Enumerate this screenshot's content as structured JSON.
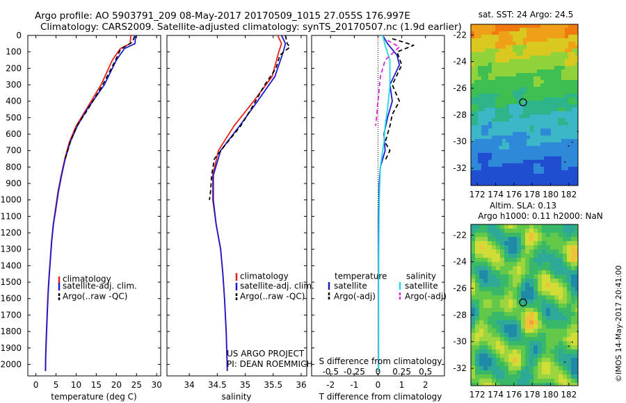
{
  "header": {
    "line1": "Argo profile: AO 5903791_209 08-May-2017 20170509_1015 27.055S 176.997E",
    "line2": "Climatology: CARS2009. Satellite-adjusted climatology: synTS_20170507.nc (1.9d earlier)"
  },
  "footer": {
    "project": "US ARGO PROJECT",
    "pi": "PI: DEAN ROEMMICH",
    "imos": "©IMOS 14-May-2017 20:41:00"
  },
  "colors": {
    "climatology": "#e8201c",
    "satellite": "#1a1acd",
    "argo": "#000000",
    "satellite_salinity": "#22d8e8",
    "argo_salinity": "#e020e0"
  },
  "legend_labels": {
    "climatology": "climatology",
    "satellite": "satellite-adj. clim.",
    "argo": "Argo(..raw -QC)",
    "temperature_head": "temperature",
    "salinity_head": "salinity",
    "diff_satellite": "satellite",
    "diff_argo": "Argo(-adj)"
  },
  "chart_data": [
    {
      "type": "line",
      "name": "temperature-profile",
      "xlabel": "temperature (deg C)",
      "ylabel": "",
      "xlim": [
        -2,
        31
      ],
      "ylim": [
        2070,
        0
      ],
      "xticks": [
        0,
        5,
        10,
        15,
        20,
        25,
        30
      ],
      "yticks": [
        0,
        100,
        200,
        300,
        400,
        500,
        600,
        700,
        800,
        900,
        1000,
        1100,
        1200,
        1300,
        1400,
        1500,
        1600,
        1700,
        1800,
        1900,
        2000
      ],
      "series": [
        {
          "name": "climatology",
          "key": "climatology",
          "style": "solid",
          "points": [
            [
              23.6,
              0
            ],
            [
              23.4,
              50
            ],
            [
              21,
              80
            ],
            [
              19,
              150
            ],
            [
              16.2,
              300
            ],
            [
              12.5,
              450
            ],
            [
              10,
              550
            ],
            [
              8.3,
              650
            ],
            [
              7.2,
              750
            ],
            [
              6.3,
              850
            ],
            [
              5.5,
              950
            ],
            [
              4.9,
              1050
            ],
            [
              4.3,
              1150
            ],
            [
              3.9,
              1250
            ],
            [
              3.6,
              1350
            ],
            [
              3.3,
              1450
            ],
            [
              3.05,
              1550
            ],
            [
              2.85,
              1650
            ],
            [
              2.7,
              1750
            ],
            [
              2.55,
              1850
            ],
            [
              2.4,
              1950
            ],
            [
              2.35,
              2040
            ]
          ]
        },
        {
          "name": "satellite-adj. clim.",
          "key": "satellite",
          "style": "solid",
          "points": [
            [
              24.8,
              0
            ],
            [
              24.6,
              50
            ],
            [
              22,
              80
            ],
            [
              20,
              150
            ],
            [
              17,
              300
            ],
            [
              12.7,
              450
            ],
            [
              10.3,
              550
            ],
            [
              8.5,
              650
            ],
            [
              7.3,
              750
            ],
            [
              6.4,
              850
            ],
            [
              5.6,
              950
            ],
            [
              5,
              1050
            ],
            [
              4.35,
              1150
            ],
            [
              3.95,
              1250
            ],
            [
              3.65,
              1350
            ],
            [
              3.35,
              1450
            ],
            [
              3.1,
              1550
            ],
            [
              2.9,
              1650
            ],
            [
              2.75,
              1750
            ],
            [
              2.6,
              1850
            ],
            [
              2.45,
              1950
            ],
            [
              2.4,
              2040
            ]
          ]
        },
        {
          "name": "Argo(..raw -QC)",
          "key": "argo",
          "style": "dashed",
          "points": [
            [
              24.5,
              5
            ],
            [
              24,
              40
            ],
            [
              21,
              85
            ],
            [
              19.8,
              150
            ],
            [
              16.6,
              300
            ],
            [
              12.9,
              450
            ],
            [
              10.2,
              550
            ],
            [
              8.5,
              650
            ],
            [
              7.3,
              750
            ]
          ]
        }
      ]
    },
    {
      "type": "line",
      "name": "salinity-profile",
      "xlabel": "salinity",
      "ylabel": "",
      "xlim": [
        33.6,
        36.1
      ],
      "ylim": [
        2070,
        0
      ],
      "xticks": [
        34,
        34.5,
        35,
        35.5,
        36
      ],
      "series": [
        {
          "name": "climatology",
          "key": "climatology",
          "style": "solid",
          "points": [
            [
              35.58,
              0
            ],
            [
              35.65,
              50
            ],
            [
              35.6,
              100
            ],
            [
              35.48,
              250
            ],
            [
              35.15,
              400
            ],
            [
              34.8,
              550
            ],
            [
              34.52,
              700
            ],
            [
              34.42,
              850
            ],
            [
              34.42,
              1000
            ],
            [
              34.48,
              1150
            ],
            [
              34.56,
              1300
            ],
            [
              34.6,
              1450
            ],
            [
              34.63,
              1600
            ],
            [
              34.66,
              1800
            ],
            [
              34.68,
              2040
            ]
          ]
        },
        {
          "name": "satellite-adj. clim.",
          "key": "satellite",
          "style": "solid",
          "points": [
            [
              35.65,
              0
            ],
            [
              35.72,
              50
            ],
            [
              35.68,
              100
            ],
            [
              35.53,
              250
            ],
            [
              35.22,
              400
            ],
            [
              34.9,
              550
            ],
            [
              34.56,
              700
            ],
            [
              34.43,
              850
            ],
            [
              34.43,
              1000
            ],
            [
              34.48,
              1150
            ],
            [
              34.56,
              1300
            ],
            [
              34.6,
              1450
            ],
            [
              34.63,
              1600
            ],
            [
              34.66,
              1800
            ],
            [
              34.68,
              2040
            ]
          ]
        },
        {
          "name": "Argo(..raw -QC)",
          "key": "argo",
          "style": "dashed",
          "points": [
            [
              35.72,
              0
            ],
            [
              35.75,
              50
            ],
            [
              35.8,
              70
            ],
            [
              35.62,
              120
            ],
            [
              35.55,
              200
            ],
            [
              35.35,
              300
            ],
            [
              35.1,
              450
            ],
            [
              34.92,
              550
            ],
            [
              34.68,
              650
            ],
            [
              34.45,
              750
            ],
            [
              34.4,
              850
            ],
            [
              34.38,
              950
            ],
            [
              34.36,
              1000
            ]
          ]
        }
      ]
    },
    {
      "type": "line",
      "name": "difference-profile",
      "xlabel": "T difference from climatology",
      "xlabel_top": "S difference from climatology",
      "xlim": [
        -2.8,
        2.8
      ],
      "ylim": [
        2070,
        0
      ],
      "xticks": [
        -2,
        -1,
        0,
        1,
        2
      ],
      "xticks_top": [
        "-0.5",
        "-0.25",
        "0",
        "0.25",
        "0.5"
      ],
      "series": [
        {
          "name": "temperature satellite",
          "key": "satellite",
          "style": "solid",
          "points": [
            [
              0.2,
              0
            ],
            [
              0.4,
              50
            ],
            [
              0.8,
              120
            ],
            [
              0.9,
              180
            ],
            [
              0.5,
              300
            ],
            [
              0.6,
              400
            ],
            [
              0.4,
              500
            ],
            [
              0.25,
              600
            ],
            [
              0.3,
              700
            ],
            [
              0.1,
              800
            ],
            [
              0.05,
              900
            ],
            [
              0.02,
              1100
            ],
            [
              0.02,
              1500
            ],
            [
              0.02,
              2040
            ]
          ]
        },
        {
          "name": "temperature Argo(-adj)",
          "key": "argo",
          "style": "dashed",
          "points": [
            [
              0.6,
              20
            ],
            [
              1.5,
              60
            ],
            [
              0.8,
              100
            ],
            [
              1,
              180
            ],
            [
              0.6,
              300
            ],
            [
              0.9,
              400
            ],
            [
              0.6,
              480
            ],
            [
              0.5,
              550
            ],
            [
              0.3,
              650
            ],
            [
              0.5,
              700
            ],
            [
              0.3,
              760
            ]
          ]
        },
        {
          "name": "salinity satellite",
          "key": "satellite_salinity",
          "style": "solid",
          "points": [
            [
              0.2,
              0
            ],
            [
              0.3,
              60
            ],
            [
              0.5,
              150
            ],
            [
              0.5,
              300
            ],
            [
              0.4,
              450
            ],
            [
              0.3,
              550
            ],
            [
              0.25,
              650
            ],
            [
              0.1,
              800
            ],
            [
              0.05,
              1000
            ],
            [
              0.02,
              1500
            ],
            [
              0.02,
              2040
            ]
          ]
        },
        {
          "name": "salinity Argo(-adj)",
          "key": "argo_salinity",
          "style": "dashed",
          "points": [
            [
              0.4,
              30
            ],
            [
              0.9,
              70
            ],
            [
              0.3,
              150
            ],
            [
              0.1,
              250
            ],
            [
              0,
              400
            ],
            [
              -0.1,
              550
            ]
          ]
        }
      ]
    },
    {
      "type": "heatmap",
      "name": "sst-map",
      "title": "sat. SST: 24 Argo: 24.5",
      "xlim": [
        171.3,
        183.0
      ],
      "ylim": [
        -33.3,
        -21.2
      ],
      "xticks": [
        172,
        174,
        176,
        178,
        180,
        182
      ],
      "yticks": [
        -22,
        -24,
        -26,
        -28,
        -30,
        -32
      ],
      "marker": [
        176.997,
        -27.055
      ]
    },
    {
      "type": "heatmap",
      "name": "sla-map",
      "title": "Altim. SLA: 0.13",
      "subtitle": "Argo h1000: 0.11 h2000: NaN",
      "xlim": [
        171.3,
        183.0
      ],
      "ylim": [
        -33.3,
        -21.2
      ],
      "xticks": [
        172,
        174,
        176,
        178,
        180,
        182
      ],
      "yticks": [
        -22,
        -24,
        -26,
        -28,
        -30,
        -32
      ],
      "marker": [
        176.997,
        -27.055
      ]
    }
  ]
}
